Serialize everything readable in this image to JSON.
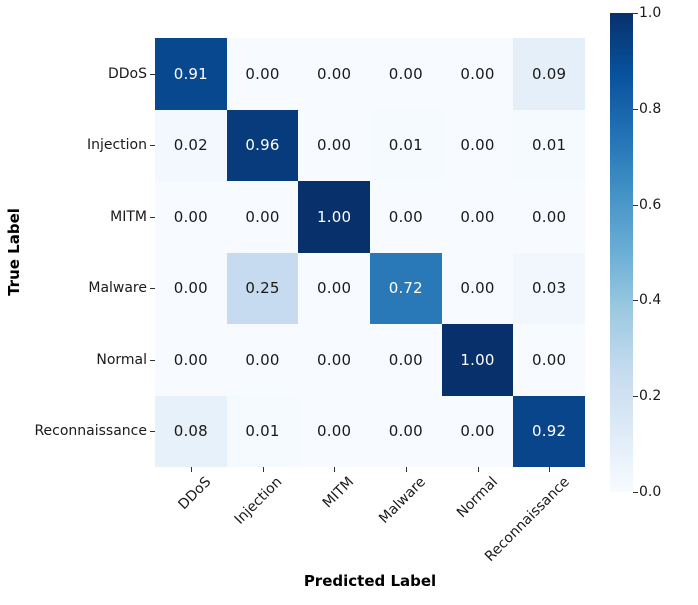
{
  "chart_data": {
    "type": "heatmap",
    "title": "",
    "xlabel": "Predicted Label",
    "ylabel": "True Label",
    "categories": [
      "DDoS",
      "Injection",
      "MITM",
      "Malware",
      "Normal",
      "Reconnaissance"
    ],
    "x_categories": [
      "DDoS",
      "Injection",
      "MITM",
      "Malware",
      "Normal",
      "Reconnaissance"
    ],
    "matrix": [
      [
        0.91,
        0.0,
        0.0,
        0.0,
        0.0,
        0.09
      ],
      [
        0.02,
        0.96,
        0.0,
        0.01,
        0.0,
        0.01
      ],
      [
        0.0,
        0.0,
        1.0,
        0.0,
        0.0,
        0.0
      ],
      [
        0.0,
        0.25,
        0.0,
        0.72,
        0.0,
        0.03
      ],
      [
        0.0,
        0.0,
        0.0,
        0.0,
        1.0,
        0.0
      ],
      [
        0.08,
        0.01,
        0.0,
        0.0,
        0.0,
        0.92
      ]
    ],
    "value_format_decimals": 2,
    "vmin": 0.0,
    "vmax": 1.0,
    "colormap": "Blues",
    "grid": false,
    "legend_position": "colorbar-right",
    "colorbar_ticks": [
      0.0,
      0.2,
      0.4,
      0.6,
      0.8,
      1.0
    ],
    "colorbar_tick_labels": [
      "0.0",
      "0.2",
      "0.4",
      "0.6",
      "0.8",
      "1.0"
    ]
  },
  "colors": {
    "cmap_anchors": [
      "#f7fbff",
      "#deebf7",
      "#c6dbef",
      "#9ecae1",
      "#6baed6",
      "#4292c6",
      "#2171b5",
      "#08519c",
      "#08306b"
    ],
    "annot_dark": "#1a1a1a",
    "annot_light": "#ffffff",
    "background": "#ffffff"
  }
}
